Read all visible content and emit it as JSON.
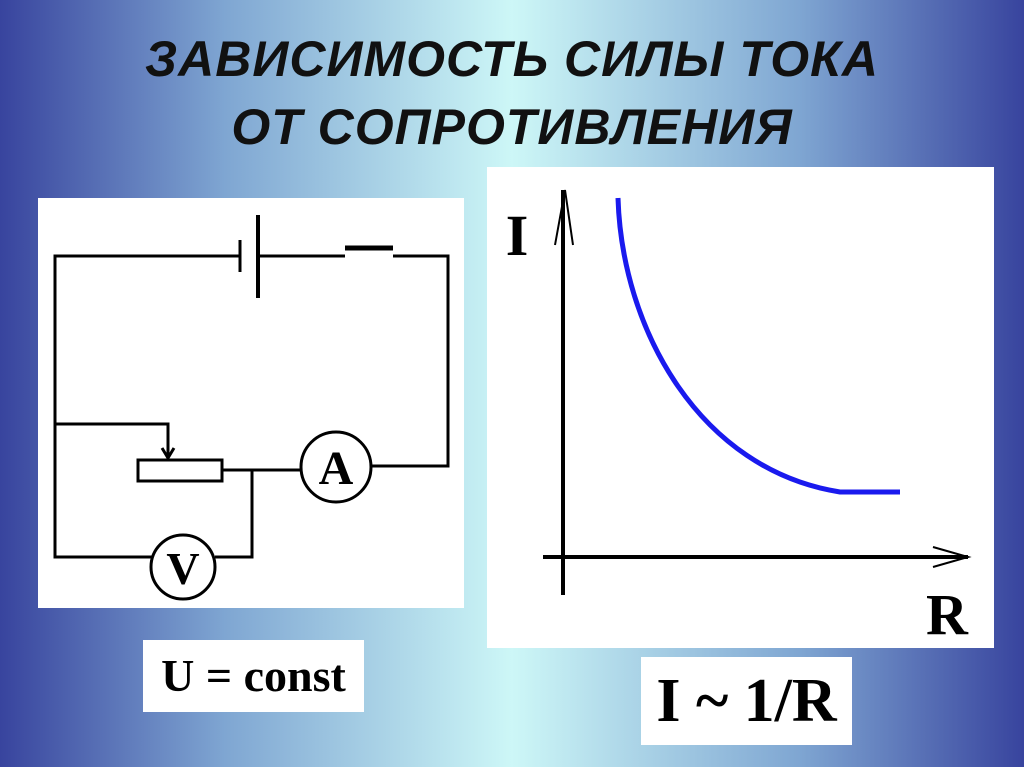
{
  "header": {
    "title_lines": [
      "ЗАВИСИМОСТЬ СИЛЫ ТОКА",
      "ОТ СОПРОТИВЛЕНИЯ"
    ]
  },
  "circuit": {
    "ammeter": "A",
    "voltmeter": "V",
    "condition": "U = const"
  },
  "graph": {
    "y_label": "I",
    "x_label": "R",
    "formula": "I ~ 1/R"
  }
}
